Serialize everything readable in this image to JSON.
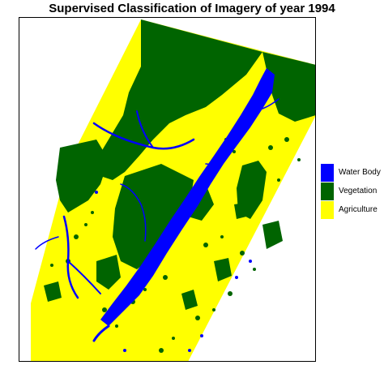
{
  "title": "Supervised Classification of Imagery of year 1994",
  "legend": {
    "items": [
      {
        "label": "Water Body",
        "color": "#0000ff"
      },
      {
        "label": "Vegetation",
        "color": "#006400"
      },
      {
        "label": "Agriculture",
        "color": "#ffff00"
      }
    ]
  },
  "colors": {
    "water": "#0000ff",
    "vegetation": "#006400",
    "agriculture": "#ffff00",
    "background": "#ffffff"
  }
}
